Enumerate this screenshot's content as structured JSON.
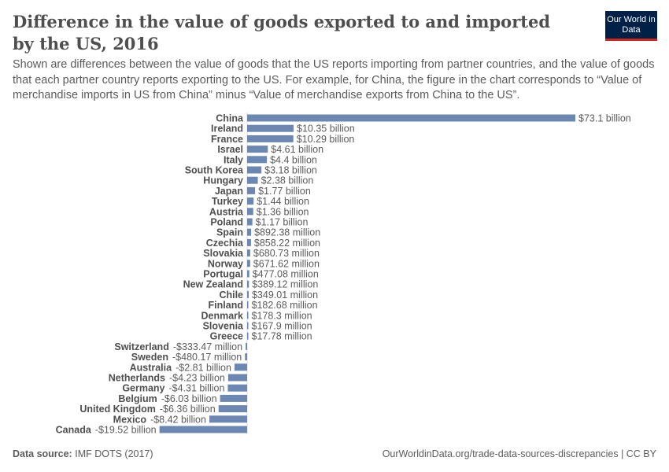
{
  "title": "Difference in the value of goods exported to and imported by the US, 2016",
  "subtitle": "Shown are differences between the value of goods that the US reports importing from partner countries, and the value of goods that each partner country reports exporting to the US. For example, for China, the figure in the chart corresponds to “Value of merchandise imports in US from China” minus “Value of merchandise exports from China to the US”.",
  "logo": "Our World in Data",
  "footer": {
    "source_label": "Data source:",
    "source": "IMF DOTS (2017)",
    "link": "OurWorldinData.org/trade-data-sources-discrepancies | CC BY"
  },
  "colors": {
    "bar": "#6d87b3",
    "text": "#4e4e4e"
  },
  "chart_data": {
    "type": "bar",
    "orientation": "horizontal",
    "unit": "US dollars",
    "categories": [
      "China",
      "Ireland",
      "France",
      "Israel",
      "Italy",
      "South Korea",
      "Hungary",
      "Japan",
      "Turkey",
      "Austria",
      "Poland",
      "Spain",
      "Czechia",
      "Slovakia",
      "Norway",
      "Portugal",
      "New Zealand",
      "Chile",
      "Finland",
      "Denmark",
      "Slovenia",
      "Greece",
      "Switzerland",
      "Sweden",
      "Australia",
      "Netherlands",
      "Germany",
      "Belgium",
      "United Kingdom",
      "Mexico",
      "Canada"
    ],
    "values": [
      73100000000.0,
      10350000000.0,
      10290000000.0,
      4610000000.0,
      4400000000.0,
      3180000000.0,
      2380000000.0,
      1770000000.0,
      1440000000.0,
      1360000000.0,
      1170000000.0,
      892380000.0,
      858220000.0,
      680730000.0,
      671620000.0,
      477080000.0,
      389120000.0,
      349010000.0,
      182680000.0,
      178300000.0,
      167900000.0,
      17780000.0,
      -333470000.0,
      -480170000.0,
      -2810000000.0,
      -4230000000.0,
      -4310000000.0,
      -6030000000.0,
      -6360000000.0,
      -8420000000.0,
      -19520000000.0
    ],
    "labels": [
      "$73.1 billion",
      "$10.35 billion",
      "$10.29 billion",
      "$4.61 billion",
      "$4.4 billion",
      "$3.18 billion",
      "$2.38 billion",
      "$1.77 billion",
      "$1.44 billion",
      "$1.36 billion",
      "$1.17 billion",
      "$892.38 million",
      "$858.22 million",
      "$680.73 million",
      "$671.62 million",
      "$477.08 million",
      "$389.12 million",
      "$349.01 million",
      "$182.68 million",
      "$178.3 million",
      "$167.9 million",
      "$17.78 million",
      "-$333.47 million",
      "-$480.17 million",
      "-$2.81 billion",
      "-$4.23 billion",
      "-$4.31 billion",
      "-$6.03 billion",
      "-$6.36 billion",
      "-$8.42 billion",
      "-$19.52 billion"
    ]
  }
}
